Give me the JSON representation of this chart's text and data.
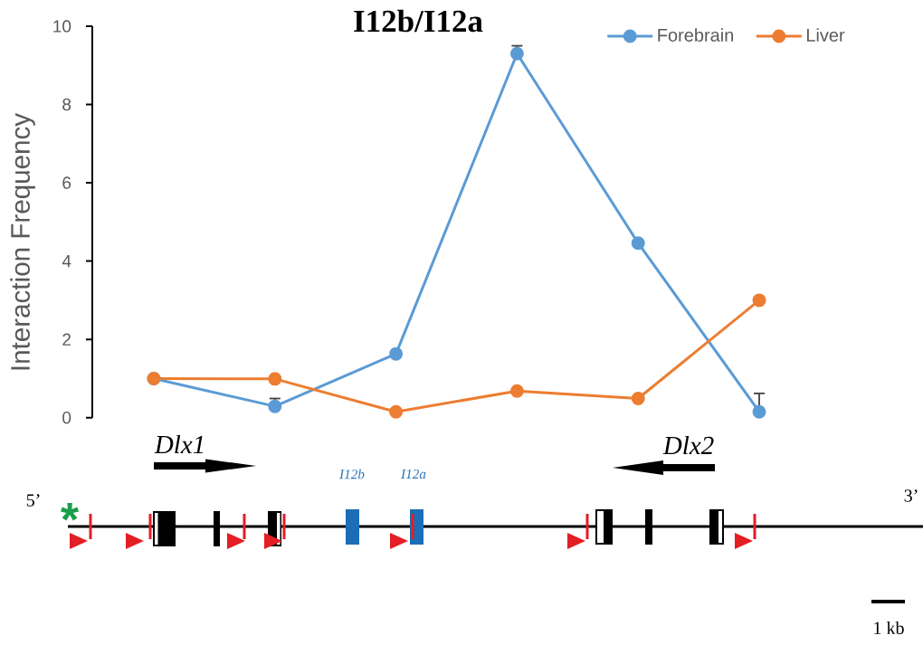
{
  "chart_data": {
    "type": "line",
    "title": "I12b/I12a",
    "ylabel": "Interaction Frequency",
    "categories": [
      null,
      null,
      null,
      null,
      null,
      null
    ],
    "series": [
      {
        "name": "Forebrain",
        "color": "#5b9bd5",
        "values": [
          1.0,
          0.29,
          1.63,
          9.3,
          4.46,
          0.15
        ],
        "errors": [
          null,
          [
            0.29,
            0.49
          ],
          null,
          [
            9.3,
            9.5
          ],
          null,
          [
            0.15,
            0.62
          ]
        ]
      },
      {
        "name": "Liver",
        "color": "#ed7d31",
        "values": [
          1.0,
          0.99,
          0.15,
          0.68,
          0.49,
          3.0
        ]
      }
    ],
    "ylim": [
      0,
      10
    ],
    "yticks": [
      0,
      2,
      4,
      6,
      8,
      10
    ],
    "tick_labels": "y",
    "legend": "top right",
    "marker": "circle",
    "line_style": "solid",
    "annotations": [
      "Dlx1",
      "Dlx2",
      "I12b",
      "I12a",
      "5’",
      "3’",
      "*",
      "1 kb"
    ]
  }
}
